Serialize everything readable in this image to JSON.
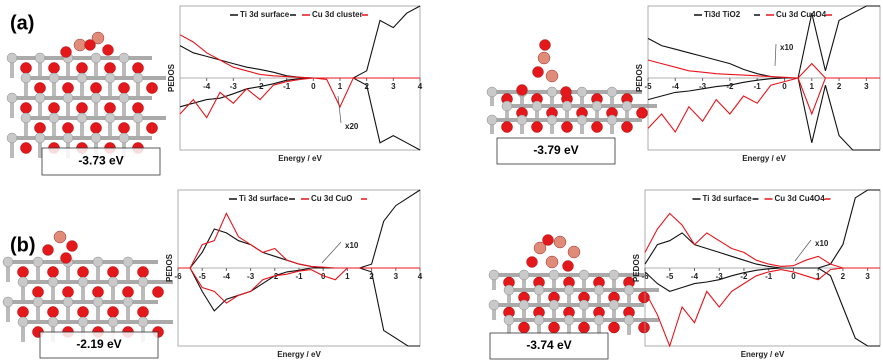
{
  "panel_labels": [
    "(a)",
    "(b)"
  ],
  "energies": [
    "-3.73 eV",
    "-3.79 eV",
    "-2.19 eV",
    "-3.74 eV"
  ],
  "chart_data": [
    {
      "type": "line",
      "xlabel": "Energy / eV",
      "ylabel": "PEDOS",
      "annotation": "x20",
      "xlim": [
        -5,
        4
      ],
      "xticks": [
        -4,
        -3,
        -2,
        -1,
        0,
        1,
        2,
        3,
        4
      ],
      "ylim": [
        -1,
        1
      ],
      "x": [
        -5,
        -4.5,
        -4,
        -3.5,
        -3,
        -2.5,
        -2,
        -1.5,
        -1,
        -0.5,
        0,
        0.5,
        1,
        1.5,
        2,
        2.5,
        3,
        3.5,
        4
      ],
      "series": [
        {
          "name": "Ti 3d surface",
          "color": "#111111",
          "values": [
            0.45,
            0.35,
            0.3,
            0.25,
            0.2,
            0.15,
            0.12,
            0.08,
            0.03,
            0.01,
            0,
            0,
            0,
            0,
            0.1,
            0.8,
            0.7,
            0.9,
            1
          ],
          "values_down": [
            -0.4,
            -0.35,
            -0.3,
            -0.28,
            -0.22,
            -0.15,
            -0.12,
            -0.08,
            -0.03,
            -0.01,
            0,
            0,
            0,
            0,
            -0.1,
            -0.9,
            -0.8,
            -0.9,
            -1
          ]
        },
        {
          "name": "Cu 3d cluster",
          "color": "#e8141b",
          "values": [
            0.6,
            0.5,
            0.35,
            0.25,
            0.15,
            0.1,
            0.05,
            0.03,
            0.02,
            0.01,
            0,
            0,
            0,
            0,
            0,
            0,
            0,
            0,
            0
          ],
          "values_down": [
            -0.5,
            -0.3,
            -0.55,
            -0.2,
            -0.35,
            -0.15,
            -0.3,
            -0.1,
            -0.05,
            -0.02,
            0,
            -0.02,
            -0.4,
            0,
            0,
            0,
            0,
            0,
            0
          ]
        }
      ]
    },
    {
      "type": "line",
      "xlabel": "Energy / eV",
      "ylabel": "PEDOS",
      "annotation": "x10",
      "xlim": [
        -5,
        3.5
      ],
      "xticks": [
        -5,
        -4,
        -3,
        -2,
        -1,
        0,
        1,
        2,
        3
      ],
      "ylim": [
        -1,
        1
      ],
      "x": [
        -5,
        -4.5,
        -4,
        -3.5,
        -3,
        -2.5,
        -2,
        -1.5,
        -1,
        -0.5,
        0,
        0.5,
        1,
        1.5,
        2,
        2.5,
        3,
        3.5
      ],
      "series": [
        {
          "name": "Ti3d TiO2",
          "color": "#111111",
          "values": [
            0.55,
            0.45,
            0.4,
            0.35,
            0.3,
            0.25,
            0.2,
            0.12,
            0.06,
            0.02,
            0,
            0,
            0.9,
            0.1,
            0.8,
            0.9,
            1,
            1
          ],
          "values_down": [
            -0.3,
            -0.25,
            -0.2,
            -0.18,
            -0.15,
            -0.12,
            -0.1,
            -0.06,
            -0.03,
            -0.01,
            0,
            0,
            -0.9,
            -0.1,
            -0.8,
            -1,
            -1,
            -1
          ]
        },
        {
          "name": "Cu 3d Cu4O4",
          "color": "#e8141b",
          "values": [
            0.25,
            0.2,
            0.15,
            0.1,
            0.08,
            0.06,
            0.05,
            0.04,
            0.03,
            0.02,
            0.01,
            0,
            0.2,
            0,
            0,
            0,
            0,
            0
          ],
          "values_down": [
            -0.7,
            -0.5,
            -0.75,
            -0.4,
            -0.6,
            -0.3,
            -0.5,
            -0.25,
            -0.35,
            -0.1,
            -0.05,
            0,
            -0.5,
            0,
            0,
            0,
            0,
            0
          ]
        }
      ]
    },
    {
      "type": "line",
      "xlabel": "Energy / eV",
      "ylabel": "PEDOS",
      "annotation": "x10",
      "xlim": [
        -6,
        4
      ],
      "xticks": [
        -6,
        -5,
        -4,
        -3,
        -2,
        -1,
        0,
        1,
        2,
        3,
        4
      ],
      "ylim": [
        -1,
        1
      ],
      "x": [
        -6,
        -5.5,
        -5,
        -4.5,
        -4,
        -3.5,
        -3,
        -2.5,
        -2,
        -1.5,
        -1,
        -0.5,
        0,
        0.5,
        1,
        1.5,
        2,
        2.5,
        3,
        3.5,
        4
      ],
      "series": [
        {
          "name": "Ti 3d surface",
          "color": "#111111",
          "values": [
            0,
            0,
            0.2,
            0.5,
            0.45,
            0.35,
            0.3,
            0.2,
            0.15,
            0.1,
            0.05,
            0.02,
            0,
            0,
            0,
            0,
            0.05,
            0.6,
            0.8,
            0.9,
            1
          ],
          "values_down": [
            0,
            0,
            -0.3,
            -0.55,
            -0.4,
            -0.35,
            -0.3,
            -0.2,
            -0.1,
            -0.05,
            -0.03,
            0,
            0,
            0,
            0,
            0,
            -0.05,
            -0.8,
            -0.9,
            -1,
            -1
          ]
        },
        {
          "name": "Cu 3d CuO",
          "color": "#e8141b",
          "values": [
            0,
            0,
            0.3,
            0.35,
            0.7,
            0.4,
            0.3,
            0.2,
            0.25,
            0.1,
            0.05,
            0.02,
            0.01,
            0,
            0,
            0,
            0,
            0,
            0,
            0,
            0
          ],
          "values_down": [
            0,
            0,
            -0.25,
            -0.3,
            -0.45,
            -0.35,
            -0.3,
            -0.15,
            -0.1,
            -0.08,
            -0.04,
            -0.02,
            -0.1,
            -0.15,
            0,
            0,
            0,
            0,
            0,
            0,
            0
          ]
        }
      ]
    },
    {
      "type": "line",
      "xlabel": "Energy / eV",
      "ylabel": "PEDOS",
      "annotation": "x10",
      "xlim": [
        -6,
        3.5
      ],
      "xticks": [
        -6,
        -5,
        -4,
        -3,
        -2,
        -1,
        0,
        1,
        2,
        3
      ],
      "ylim": [
        -1,
        1
      ],
      "x": [
        -6,
        -5.5,
        -5,
        -4.5,
        -4,
        -3.5,
        -3,
        -2.5,
        -2,
        -1.5,
        -1,
        -0.5,
        0,
        0.5,
        1,
        1.5,
        2,
        2.5,
        3,
        3.5
      ],
      "series": [
        {
          "name": "Ti 3d surface",
          "color": "#111111",
          "values": [
            0.05,
            0.3,
            0.35,
            0.45,
            0.3,
            0.25,
            0.2,
            0.15,
            0.1,
            0.05,
            0.02,
            0,
            0,
            0,
            0,
            0.05,
            0.3,
            0.9,
            1,
            1
          ],
          "values_down": [
            -0.05,
            -0.2,
            -0.3,
            -0.25,
            -0.2,
            -0.18,
            -0.15,
            -0.1,
            -0.06,
            -0.03,
            -0.01,
            0,
            0,
            0,
            0,
            -0.1,
            -0.5,
            -0.9,
            -1,
            -1
          ]
        },
        {
          "name": "Cu 3d Cu4O4",
          "color": "#e8141b",
          "values": [
            0.2,
            0.5,
            0.7,
            0.55,
            0.3,
            0.45,
            0.35,
            0.25,
            0.2,
            0.1,
            0.05,
            0.02,
            0.03,
            0.1,
            0.15,
            0.05,
            0,
            0,
            0,
            0
          ],
          "values_down": [
            -0.3,
            -0.6,
            -1,
            -0.5,
            -0.7,
            -0.3,
            -0.5,
            -0.3,
            -0.2,
            -0.1,
            -0.05,
            -0.02,
            -0.05,
            -0.1,
            -0.15,
            -0.02,
            0,
            0,
            0,
            0
          ]
        }
      ]
    }
  ]
}
